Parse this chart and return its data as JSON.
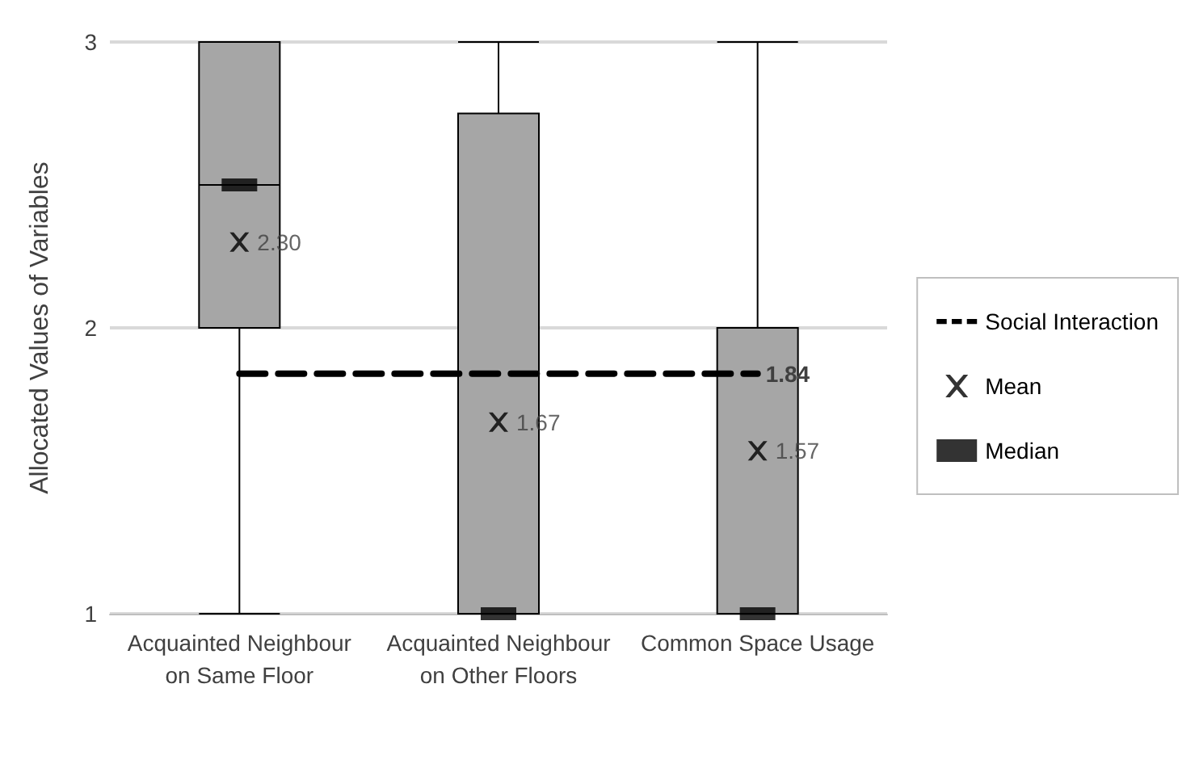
{
  "chart_data": {
    "type": "box",
    "ylabel": "Allocated Values of Variables",
    "categories": [
      "Acquainted Neighbour\non Same Floor",
      "Acquainted Neighbour\non Other Floors",
      "Common Space Usage"
    ],
    "ylim": [
      1,
      3
    ],
    "yticks": [
      1,
      2,
      3
    ],
    "grid": "y",
    "legend": "right",
    "series": [
      {
        "color": "#a6a6a6",
        "boxes": [
          {
            "low": 1,
            "q1": 2,
            "median": 2.5,
            "q3": 3,
            "high": 3
          },
          {
            "low": 1,
            "q1": 1,
            "median": 1,
            "q3": 2.75,
            "high": 3
          },
          {
            "low": 1,
            "q1": 1,
            "median": 1,
            "q3": 2,
            "high": 3
          }
        ]
      },
      {
        "name": "Social Interaction",
        "type": "line",
        "color": "#000000",
        "line_style": "dashed",
        "marker": "none",
        "values": [
          1.84,
          1.84,
          1.84
        ],
        "value_labels": [
          null,
          null,
          "1.84"
        ]
      },
      {
        "name": "Mean",
        "type": "scatter",
        "color": "#000000",
        "marker": "cross",
        "values": [
          2.3,
          1.67,
          1.57
        ],
        "value_labels": [
          "2.30",
          "1.67",
          "1.57"
        ]
      },
      {
        "name": "Median",
        "type": "scatter",
        "color": "#000000",
        "marker": "square",
        "values": [
          2.5,
          1,
          1
        ]
      }
    ]
  }
}
